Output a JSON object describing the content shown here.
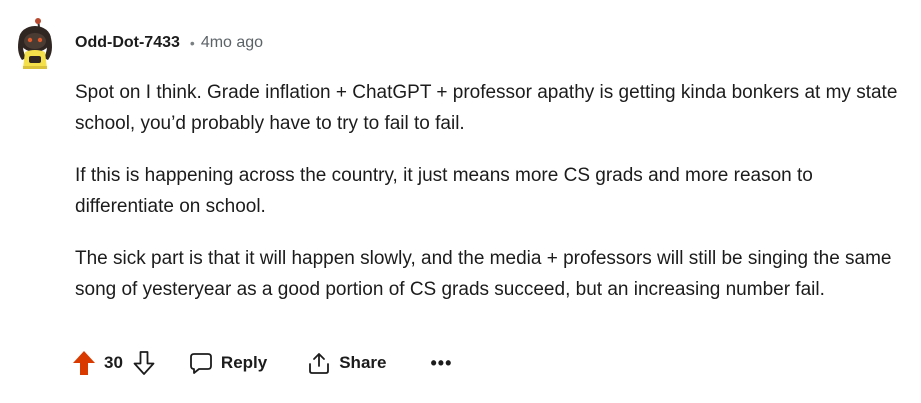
{
  "comment": {
    "author": "Odd-Dot-7433",
    "separator": "•",
    "age": "4mo ago",
    "paragraphs": [
      "Spot on I think. Grade inflation + ChatGPT + professor apathy is getting kinda bonkers at my state school, you’d probably have to try to fail to fail.",
      "If this is happening across the country, it just means more CS grads and more reason to differentiate on school.",
      "The sick part is that it will happen slowly, and the media + professors will still be singing the same song of yesteryear as a good portion of CS grads succeed, but an increasing number fail."
    ]
  },
  "actions": {
    "upvote_icon": "arrow-up-filled-icon",
    "score": "30",
    "downvote_icon": "arrow-down-outline-icon",
    "reply_icon": "speech-bubble-icon",
    "reply_label": "Reply",
    "share_icon": "share-icon",
    "share_label": "Share",
    "more_label": "•••"
  },
  "colors": {
    "upvote_active": "#d93a00",
    "text": "#1c1c1c",
    "meta": "#5c6367"
  }
}
